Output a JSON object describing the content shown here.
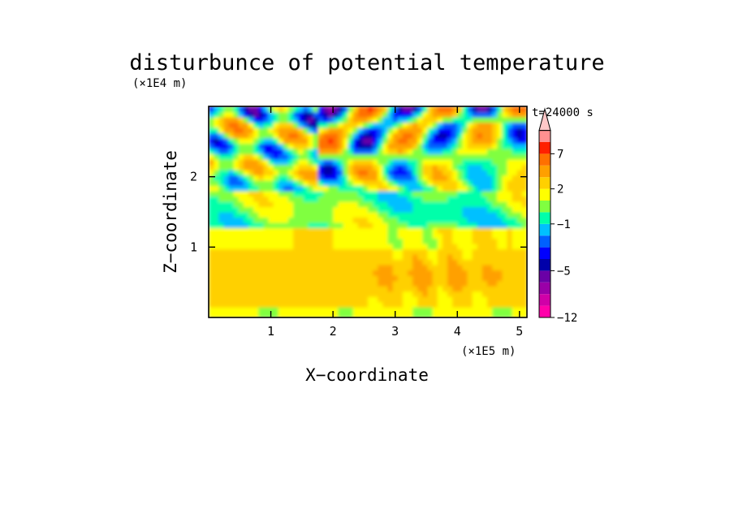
{
  "chart_data": {
    "type": "heatmap",
    "title": "disturbunce of potential temperature",
    "time_label": "t=24000 s",
    "xlabel": "X−coordinate",
    "ylabel": "Z−coordinate",
    "x_unit": "(×1E5 m)",
    "y_unit": "(×1E4 m)",
    "xlim": [
      0,
      5.12
    ],
    "ylim": [
      0,
      3.0
    ],
    "x_ticks": [
      1,
      2,
      3,
      4,
      5
    ],
    "y_ticks": [
      1,
      2
    ],
    "x_tick_labels": [
      "1",
      "2",
      "3",
      "4",
      "5"
    ],
    "y_tick_labels": [
      "1",
      "2"
    ],
    "colorbar": {
      "levels": [
        -12,
        -10,
        -8,
        -6,
        -5,
        -4,
        -3,
        -2,
        -1,
        0,
        1,
        2,
        3,
        5,
        7,
        9,
        11
      ],
      "colors": [
        "#ff00aa",
        "#d000a8",
        "#9a00a8",
        "#6a00a6",
        "#0000aa",
        "#0000ff",
        "#0060ff",
        "#00c0ff",
        "#00ffaa",
        "#80ff40",
        "#ffff00",
        "#ffd000",
        "#ffa000",
        "#ff7000",
        "#ff2000",
        "#ff9090",
        "#ffc8c8"
      ],
      "tick_values": [
        -12,
        -5,
        -1,
        2,
        7
      ],
      "tick_labels": [
        "−12",
        "−5",
        "−1",
        "2",
        "7"
      ],
      "extend": "max"
    }
  }
}
